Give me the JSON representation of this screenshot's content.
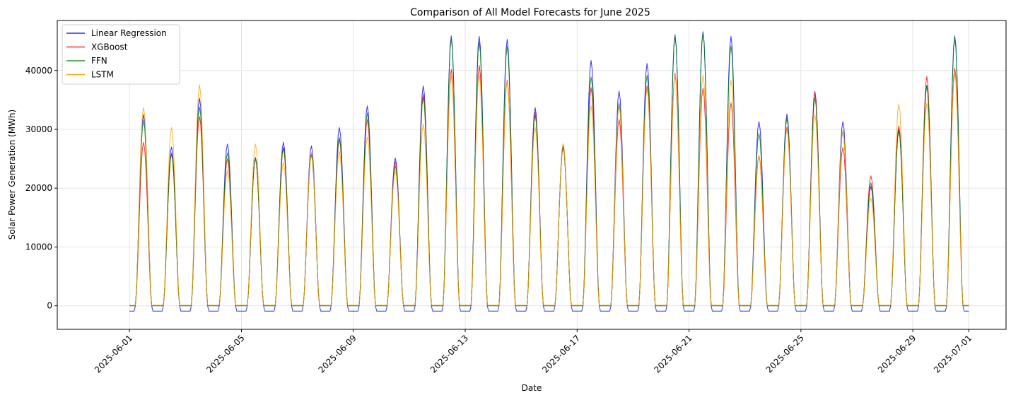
{
  "chart_data": {
    "type": "line",
    "title": "Comparison of All Model Forecasts for June 2025",
    "xlabel": "Date",
    "ylabel": "Solar Power Generation (MWh)",
    "xlim": [
      "2025-05-29T10:00",
      "2025-07-02T08:00"
    ],
    "ylim": [
      -4000,
      48500
    ],
    "grid": true,
    "legend_position": "top-left",
    "x_ticks": [
      "2025-06-01",
      "2025-06-05",
      "2025-06-09",
      "2025-06-13",
      "2025-06-17",
      "2025-06-21",
      "2025-06-25",
      "2025-06-29",
      "2025-07-01"
    ],
    "y_ticks": [
      0,
      10000,
      20000,
      30000,
      40000
    ],
    "x_start": "2025-06-01",
    "series": [
      {
        "name": "Linear Regression",
        "color": "#0000ff",
        "night_value": -900,
        "daily_peaks": [
          32500,
          27000,
          35300,
          27500,
          25200,
          27800,
          27200,
          30300,
          34000,
          25100,
          37400,
          45900,
          45800,
          45300,
          33700,
          27300,
          41700,
          36500,
          41200,
          46100,
          46600,
          45800,
          31300,
          32600,
          36400,
          31300,
          20300,
          30000,
          37500,
          45900
        ]
      },
      {
        "name": "XGBoost",
        "color": "#ff0000",
        "night_value": 50,
        "daily_peaks": [
          27800,
          26000,
          32200,
          25000,
          25000,
          26800,
          25900,
          28300,
          31700,
          24500,
          36000,
          40200,
          40900,
          38400,
          32900,
          27000,
          37100,
          31700,
          37400,
          39500,
          37000,
          34500,
          25500,
          30400,
          36400,
          26900,
          22100,
          30600,
          39000,
          40400
        ]
      },
      {
        "name": "FFN",
        "color": "#008000",
        "night_value": 0,
        "daily_peaks": [
          31500,
          25800,
          33800,
          26000,
          25200,
          26900,
          25700,
          28600,
          32800,
          23800,
          35500,
          45400,
          44800,
          44100,
          32400,
          27100,
          38900,
          34500,
          39200,
          45800,
          46400,
          44200,
          29300,
          31900,
          35400,
          29800,
          20900,
          29700,
          37500,
          45500
        ]
      },
      {
        "name": "LSTM",
        "color": "#ffa500",
        "night_value": 100,
        "daily_peaks": [
          33700,
          30300,
          37600,
          23000,
          27500,
          24400,
          26100,
          26200,
          28700,
          23000,
          30900,
          39200,
          39300,
          38200,
          30300,
          27600,
          34000,
          34000,
          37000,
          39200,
          39200,
          38400,
          25600,
          30100,
          32500,
          29700,
          18300,
          34300,
          34400,
          39500
        ]
      }
    ]
  }
}
